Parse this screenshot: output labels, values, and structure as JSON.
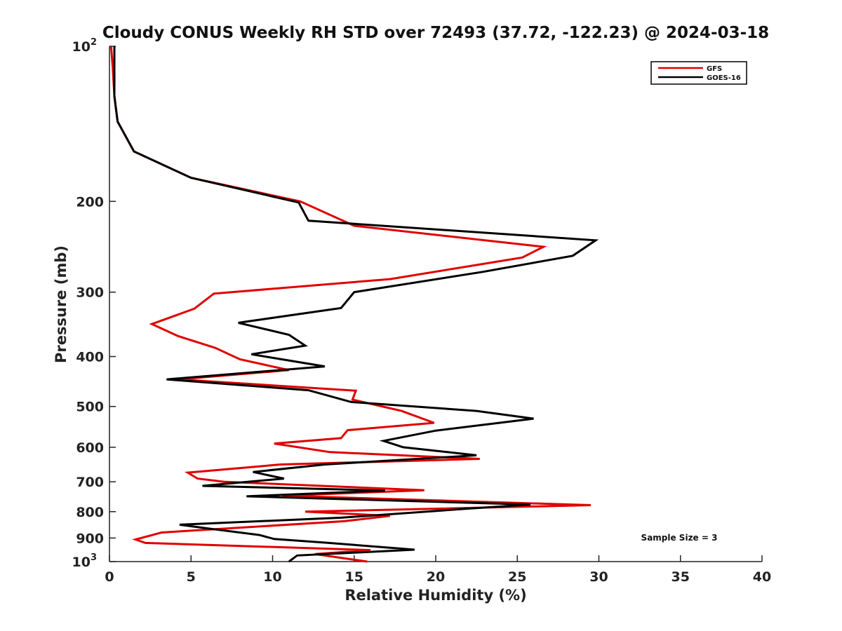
{
  "chart_data": {
    "type": "line",
    "title": "Cloudy CONUS Weekly RH STD over 72493 (37.72, -122.23) @ 2024-03-18",
    "xlabel": "Relative Humidity (%)",
    "ylabel": "Pressure (mb)",
    "xlim": [
      0,
      40
    ],
    "ylim": [
      100,
      1000
    ],
    "y_scale": "log",
    "y_reversed": true,
    "x_ticks": [
      "0",
      "5",
      "10",
      "15",
      "20",
      "25",
      "30",
      "35",
      "40"
    ],
    "y_ticks": [
      {
        "value": 100,
        "base": "10",
        "exp": "2"
      },
      {
        "value": 200,
        "label": "200"
      },
      {
        "value": 300,
        "label": "300"
      },
      {
        "value": 400,
        "label": "400"
      },
      {
        "value": 500,
        "label": "500"
      },
      {
        "value": 600,
        "label": "600"
      },
      {
        "value": 700,
        "label": "700"
      },
      {
        "value": 800,
        "label": "800"
      },
      {
        "value": 900,
        "label": "900"
      },
      {
        "value": 1000,
        "base": "10",
        "exp": "3"
      }
    ],
    "grid": false,
    "legend_position": "top-right",
    "annotation": "Sample Size = 3",
    "series": [
      {
        "name": "GFS",
        "color": "#e00000",
        "points": [
          [
            0.1,
            100
          ],
          [
            0.2,
            110
          ],
          [
            0.3,
            125
          ],
          [
            0.5,
            140
          ],
          [
            1.5,
            160
          ],
          [
            5.0,
            180
          ],
          [
            11.7,
            200
          ],
          [
            15.0,
            223
          ],
          [
            26.6,
            245
          ],
          [
            25.3,
            257
          ],
          [
            17.2,
            283
          ],
          [
            6.4,
            302
          ],
          [
            5.2,
            323
          ],
          [
            2.6,
            346
          ],
          [
            4.2,
            365
          ],
          [
            6.5,
            385
          ],
          [
            8.0,
            405
          ],
          [
            11.0,
            425
          ],
          [
            4.2,
            443
          ],
          [
            15.1,
            466
          ],
          [
            14.9,
            485
          ],
          [
            17.9,
            510
          ],
          [
            19.9,
            538
          ],
          [
            14.6,
            556
          ],
          [
            14.2,
            576
          ],
          [
            10.1,
            590
          ],
          [
            13.5,
            613
          ],
          [
            22.7,
            632
          ],
          [
            10.5,
            648
          ],
          [
            4.8,
            672
          ],
          [
            5.4,
            690
          ],
          [
            7.0,
            700
          ],
          [
            19.3,
            727
          ],
          [
            10.6,
            745
          ],
          [
            29.5,
            777
          ],
          [
            12.0,
            800
          ],
          [
            17.2,
            815
          ],
          [
            14.4,
            835
          ],
          [
            3.2,
            878
          ],
          [
            1.6,
            906
          ],
          [
            2.2,
            920
          ],
          [
            16.0,
            950
          ],
          [
            12.6,
            967
          ],
          [
            15.8,
            1000
          ]
        ]
      },
      {
        "name": "GOES-16",
        "color": "#000000",
        "points": [
          [
            0.3,
            100
          ],
          [
            0.3,
            110
          ],
          [
            0.3,
            125
          ],
          [
            0.5,
            140
          ],
          [
            1.5,
            160
          ],
          [
            5.0,
            180
          ],
          [
            11.6,
            201
          ],
          [
            12.2,
            218
          ],
          [
            29.8,
            238
          ],
          [
            28.4,
            255
          ],
          [
            22.9,
            274
          ],
          [
            15.0,
            300
          ],
          [
            14.2,
            322
          ],
          [
            7.9,
            344
          ],
          [
            11.0,
            363
          ],
          [
            12.0,
            381
          ],
          [
            8.7,
            396
          ],
          [
            13.2,
            418
          ],
          [
            3.5,
            443
          ],
          [
            12.2,
            465
          ],
          [
            14.8,
            490
          ],
          [
            22.5,
            510
          ],
          [
            26.0,
            528
          ],
          [
            20.0,
            557
          ],
          [
            16.8,
            583
          ],
          [
            18.0,
            600
          ],
          [
            22.5,
            622
          ],
          [
            13.2,
            648
          ],
          [
            8.8,
            670
          ],
          [
            10.7,
            690
          ],
          [
            5.7,
            713
          ],
          [
            16.9,
            728
          ],
          [
            8.4,
            747
          ],
          [
            25.8,
            775
          ],
          [
            21.8,
            790
          ],
          [
            14.2,
            822
          ],
          [
            4.3,
            848
          ],
          [
            6.0,
            862
          ],
          [
            9.2,
            888
          ],
          [
            10.1,
            904
          ],
          [
            13.1,
            918
          ],
          [
            18.7,
            948
          ],
          [
            11.5,
            973
          ],
          [
            11.0,
            1000
          ]
        ]
      }
    ]
  }
}
